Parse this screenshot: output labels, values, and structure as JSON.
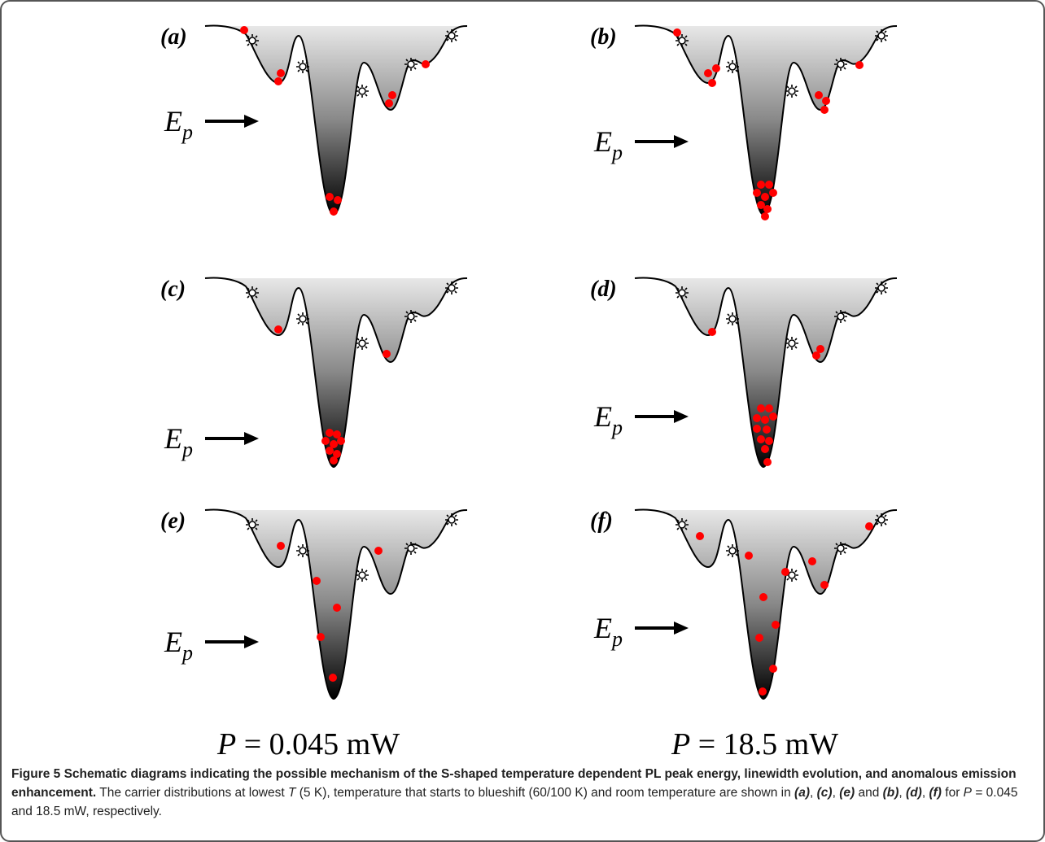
{
  "panels": [
    {
      "label": "(a)",
      "energy": {
        "base": "E",
        "sub": "p"
      }
    },
    {
      "label": "(b)",
      "energy": {
        "base": "E",
        "sub": "p"
      }
    },
    {
      "label": "(c)",
      "energy": {
        "base": "E",
        "sub": "p"
      }
    },
    {
      "label": "(d)",
      "energy": {
        "base": "E",
        "sub": "p"
      }
    },
    {
      "label": "(e)",
      "energy": {
        "base": "E",
        "sub": "p"
      }
    },
    {
      "label": "(f)",
      "energy": {
        "base": "E",
        "sub": "p"
      }
    }
  ],
  "power_labels": [
    {
      "symbol": "P",
      "text": " = 0.045 mW"
    },
    {
      "symbol": "P",
      "text": " = 18.5 mW"
    }
  ],
  "caption": {
    "segments": [
      "Figure 5 Schematic diagrams indicating the possible mechanism of the S-shaped temperature dependent PL peak energy, linewidth evolution, and anomalous emission enhancement.",
      " The carrier distributions at lowest ",
      "T",
      " (5 K), temperature that starts to blueshift (60/100 K) and room temperature are shown in ",
      "(a)",
      ", ",
      "(c)",
      ", ",
      "(e)",
      " and ",
      "(b)",
      ", ",
      "(d)",
      ", ",
      "(f)",
      " for ",
      "P",
      " = 0.045 and 18.5 mW, respectively."
    ]
  }
}
